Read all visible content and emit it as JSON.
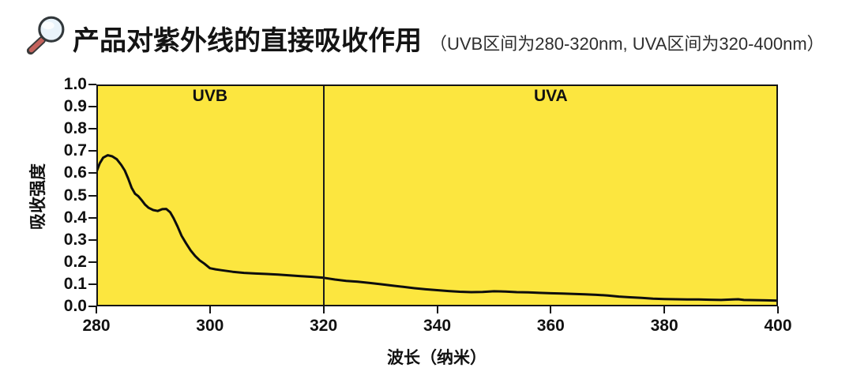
{
  "header": {
    "icon": "magnifier-icon",
    "title": "产品对紫外线的直接吸收作用",
    "subtitle": "（UVB区间为280-320nm, UVA区间为320-400nm）"
  },
  "chart_data": {
    "type": "line",
    "title": "产品对紫外线的直接吸收作用",
    "xlabel": "波长（纳米）",
    "ylabel": "吸收强度",
    "xlim": [
      280,
      400
    ],
    "ylim": [
      0,
      1
    ],
    "x_ticks": [
      "280",
      "300",
      "320",
      "340",
      "360",
      "380",
      "400"
    ],
    "y_ticks": [
      "0.0",
      "0.1",
      "0.2",
      "0.3",
      "0.4",
      "0.5",
      "0.6",
      "0.7",
      "0.8",
      "0.9",
      "1.0"
    ],
    "grid": false,
    "legend": "none",
    "plot_bg_color": "#FCE63F",
    "line_color": "#0d0d0d",
    "divider_x": 320,
    "regions": [
      {
        "label": "UVB",
        "range": [
          280,
          320
        ]
      },
      {
        "label": "UVA",
        "range": [
          320,
          400
        ]
      }
    ],
    "series": [
      {
        "name": "absorption",
        "points": [
          [
            280,
            0.605
          ],
          [
            280.6,
            0.645
          ],
          [
            281.2,
            0.67
          ],
          [
            282,
            0.681
          ],
          [
            282.8,
            0.676
          ],
          [
            283.6,
            0.663
          ],
          [
            284.4,
            0.637
          ],
          [
            285,
            0.612
          ],
          [
            285.6,
            0.576
          ],
          [
            286.2,
            0.535
          ],
          [
            286.8,
            0.508
          ],
          [
            287.4,
            0.496
          ],
          [
            288,
            0.478
          ],
          [
            288.6,
            0.458
          ],
          [
            289.2,
            0.444
          ],
          [
            290,
            0.434
          ],
          [
            290.8,
            0.43
          ],
          [
            291.6,
            0.438
          ],
          [
            292.3,
            0.439
          ],
          [
            293,
            0.424
          ],
          [
            293.6,
            0.397
          ],
          [
            294.3,
            0.36
          ],
          [
            295,
            0.318
          ],
          [
            295.8,
            0.284
          ],
          [
            296.6,
            0.252
          ],
          [
            297.4,
            0.227
          ],
          [
            298.2,
            0.207
          ],
          [
            299,
            0.193
          ],
          [
            300,
            0.172
          ],
          [
            301,
            0.167
          ],
          [
            302,
            0.163
          ],
          [
            304,
            0.156
          ],
          [
            306,
            0.151
          ],
          [
            308,
            0.148
          ],
          [
            310,
            0.146
          ],
          [
            312,
            0.143
          ],
          [
            314,
            0.14
          ],
          [
            316,
            0.136
          ],
          [
            318,
            0.133
          ],
          [
            320,
            0.129
          ],
          [
            322,
            0.121
          ],
          [
            324,
            0.115
          ],
          [
            326,
            0.111
          ],
          [
            328,
            0.106
          ],
          [
            330,
            0.1
          ],
          [
            332,
            0.094
          ],
          [
            334,
            0.088
          ],
          [
            336,
            0.082
          ],
          [
            338,
            0.077
          ],
          [
            340,
            0.073
          ],
          [
            342,
            0.069
          ],
          [
            344,
            0.066
          ],
          [
            346,
            0.064
          ],
          [
            348,
            0.065
          ],
          [
            350,
            0.068
          ],
          [
            352,
            0.067
          ],
          [
            354,
            0.064
          ],
          [
            356,
            0.063
          ],
          [
            358,
            0.061
          ],
          [
            360,
            0.059
          ],
          [
            362,
            0.058
          ],
          [
            364,
            0.056
          ],
          [
            366,
            0.054
          ],
          [
            368,
            0.052
          ],
          [
            370,
            0.049
          ],
          [
            372,
            0.044
          ],
          [
            374,
            0.041
          ],
          [
            376,
            0.038
          ],
          [
            378,
            0.035
          ],
          [
            380,
            0.033
          ],
          [
            382,
            0.032
          ],
          [
            384,
            0.031
          ],
          [
            386,
            0.031
          ],
          [
            388,
            0.03
          ],
          [
            390,
            0.029
          ],
          [
            392,
            0.031
          ],
          [
            393,
            0.032
          ],
          [
            394,
            0.029
          ],
          [
            396,
            0.028
          ],
          [
            398,
            0.027
          ],
          [
            400,
            0.026
          ]
        ]
      }
    ]
  }
}
